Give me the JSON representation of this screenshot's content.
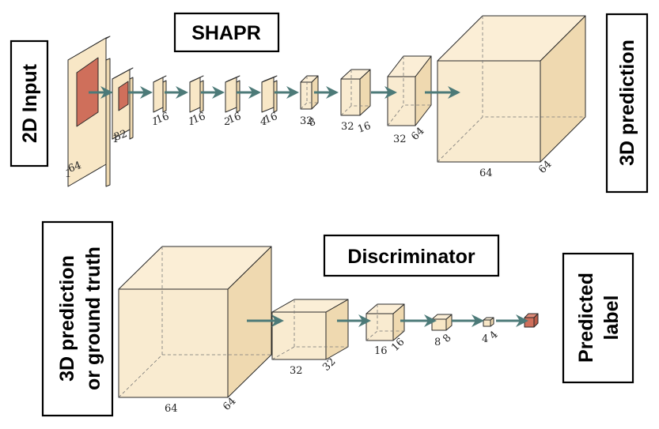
{
  "shapr": {
    "title": "SHAPR",
    "input_label": "2D Input",
    "output_label": "3D prediction",
    "layer_dims": [
      [
        "64",
        "1"
      ],
      [
        "32",
        "1"
      ],
      [
        "16",
        "1"
      ],
      [
        "16",
        "1"
      ],
      [
        "16",
        "2"
      ],
      [
        "16",
        "4"
      ],
      [
        "32",
        "8"
      ],
      [
        "32",
        "16"
      ],
      [
        "32",
        "64"
      ],
      [
        "64",
        "64"
      ]
    ]
  },
  "discriminator": {
    "title": "Discriminator",
    "input_label_line1": "3D prediction",
    "input_label_line2": "or ground truth",
    "output_label_line1": "Predicted",
    "output_label_line2": "label",
    "layer_dims": [
      [
        "64",
        "64"
      ],
      [
        "32",
        "32"
      ],
      [
        "16",
        "16"
      ],
      [
        "8",
        "8"
      ],
      [
        "4",
        "4"
      ]
    ]
  },
  "colors": {
    "box_fill": "#f8e7c6",
    "box_fill_side": "#efd9b0",
    "box_fill_top": "#fbeed6",
    "red_fill": "#cf6f5b",
    "red_side": "#b95a47",
    "red_top": "#dd8a78",
    "arrow": "#4c7a78"
  }
}
